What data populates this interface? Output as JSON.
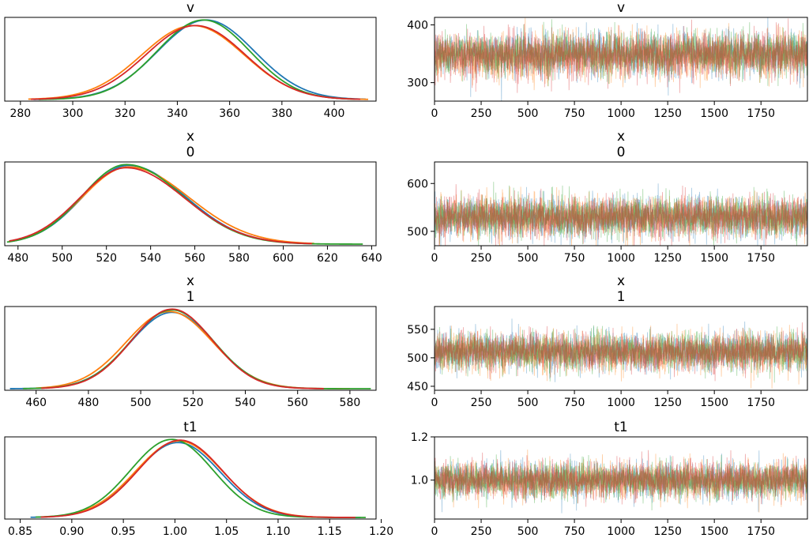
{
  "colors": {
    "chain_1": "#1f77b4",
    "chain_2": "#ff7f0e",
    "chain_3": "#2ca02c",
    "chain_4": "#d62728",
    "trace_blend": "#a0784e"
  },
  "chart_data": [
    {
      "type": "line",
      "kind": "density",
      "title_lines": [
        "v"
      ],
      "xlim": [
        274,
        416
      ],
      "xticks": [
        280,
        300,
        320,
        340,
        360,
        380,
        400
      ],
      "xtick_labels": [
        "280",
        "300",
        "320",
        "340",
        "360",
        "380",
        "400"
      ],
      "yticks": [],
      "series": [
        {
          "mean": 351,
          "sd": 18.5,
          "peak": 1.0,
          "range": [
            285,
            412
          ]
        },
        {
          "mean": 346,
          "sd": 19.5,
          "peak": 0.93,
          "range": [
            283,
            413
          ]
        },
        {
          "mean": 350,
          "sd": 17.8,
          "peak": 1.0,
          "range": [
            287,
            408
          ]
        },
        {
          "mean": 347,
          "sd": 19.0,
          "peak": 0.93,
          "range": [
            284,
            410
          ]
        }
      ]
    },
    {
      "type": "line",
      "kind": "trace",
      "title_lines": [
        "v"
      ],
      "xlim": [
        0,
        1999
      ],
      "ylim": [
        268,
        413
      ],
      "xticks": [
        0,
        250,
        500,
        750,
        1000,
        1250,
        1500,
        1750
      ],
      "xtick_labels": [
        "0",
        "250",
        "500",
        "750",
        "1000",
        "1250",
        "1500",
        "1750"
      ],
      "yticks": [
        300,
        400
      ],
      "ytick_labels": [
        "300",
        "400"
      ],
      "draws": 2000,
      "chains": [
        {
          "mean": 350,
          "sd": 18.5
        },
        {
          "mean": 347,
          "sd": 19.5
        },
        {
          "mean": 350,
          "sd": 17.8
        },
        {
          "mean": 348,
          "sd": 19.0
        }
      ]
    },
    {
      "type": "line",
      "kind": "density",
      "title_lines": [
        "x",
        "0"
      ],
      "xlim": [
        474,
        642
      ],
      "xticks": [
        480,
        500,
        520,
        540,
        560,
        580,
        600,
        620,
        640
      ],
      "xtick_labels": [
        "480",
        "500",
        "520",
        "540",
        "560",
        "580",
        "600",
        "620",
        "640"
      ],
      "yticks": [],
      "series": [
        {
          "mean": 530,
          "sd": 20.5,
          "peak": 0.99,
          "skew": 0.25,
          "range": [
            476,
            612
          ]
        },
        {
          "mean": 530,
          "sd": 21.0,
          "peak": 0.97,
          "skew": 0.3,
          "range": [
            476,
            614
          ]
        },
        {
          "mean": 529,
          "sd": 20.0,
          "peak": 1.0,
          "skew": 0.28,
          "range": [
            475,
            636
          ]
        },
        {
          "mean": 529,
          "sd": 21.0,
          "peak": 0.96,
          "skew": 0.25,
          "range": [
            476,
            613
          ]
        }
      ]
    },
    {
      "type": "line",
      "kind": "trace",
      "title_lines": [
        "x",
        "0"
      ],
      "xlim": [
        0,
        1999
      ],
      "ylim": [
        470,
        645
      ],
      "xticks": [
        0,
        250,
        500,
        750,
        1000,
        1250,
        1500,
        1750
      ],
      "xtick_labels": [
        "0",
        "250",
        "500",
        "750",
        "1000",
        "1250",
        "1500",
        "1750"
      ],
      "yticks": [
        500,
        600
      ],
      "ytick_labels": [
        "500",
        "600"
      ],
      "draws": 2000,
      "chains": [
        {
          "mean": 531,
          "sd": 20.5
        },
        {
          "mean": 531,
          "sd": 21.0
        },
        {
          "mean": 530,
          "sd": 20.0
        },
        {
          "mean": 530,
          "sd": 21.0
        }
      ]
    },
    {
      "type": "line",
      "kind": "density",
      "title_lines": [
        "x",
        "1"
      ],
      "xlim": [
        448,
        590
      ],
      "xticks": [
        460,
        480,
        500,
        520,
        540,
        560,
        580
      ],
      "xtick_labels": [
        "460",
        "480",
        "500",
        "520",
        "540",
        "560",
        "580"
      ],
      "yticks": [],
      "series": [
        {
          "mean": 512,
          "sd": 16.0,
          "peak": 0.96,
          "range": [
            450,
            570
          ]
        },
        {
          "mean": 511,
          "sd": 16.5,
          "peak": 0.97,
          "range": [
            460,
            580
          ]
        },
        {
          "mean": 512,
          "sd": 15.8,
          "peak": 0.99,
          "range": [
            455,
            588
          ]
        },
        {
          "mean": 512,
          "sd": 15.5,
          "peak": 1.0,
          "range": [
            462,
            570
          ]
        }
      ]
    },
    {
      "type": "line",
      "kind": "trace",
      "title_lines": [
        "x",
        "1"
      ],
      "xlim": [
        0,
        1999
      ],
      "ylim": [
        443,
        590
      ],
      "xticks": [
        0,
        250,
        500,
        750,
        1000,
        1250,
        1500,
        1750
      ],
      "xtick_labels": [
        "0",
        "250",
        "500",
        "750",
        "1000",
        "1250",
        "1500",
        "1750"
      ],
      "yticks": [
        450,
        500,
        550
      ],
      "ytick_labels": [
        "450",
        "500",
        "550"
      ],
      "draws": 2000,
      "chains": [
        {
          "mean": 511,
          "sd": 16.0
        },
        {
          "mean": 510,
          "sd": 16.5
        },
        {
          "mean": 511,
          "sd": 15.8
        },
        {
          "mean": 511,
          "sd": 15.5
        }
      ]
    },
    {
      "type": "line",
      "kind": "density",
      "title_lines": [
        "t1"
      ],
      "xlim": [
        0.835,
        1.195
      ],
      "xticks": [
        0.85,
        0.9,
        0.95,
        1.0,
        1.05,
        1.1,
        1.15,
        1.2
      ],
      "xtick_labels": [
        "0.85",
        "0.90",
        "0.95",
        "1.00",
        "1.05",
        "1.10",
        "1.15",
        "1.20"
      ],
      "yticks": [],
      "series": [
        {
          "mean": 1.003,
          "sd": 0.041,
          "peak": 0.96,
          "range": [
            0.86,
            1.18
          ]
        },
        {
          "mean": 1.004,
          "sd": 0.042,
          "peak": 0.98,
          "range": [
            0.87,
            1.17
          ]
        },
        {
          "mean": 0.997,
          "sd": 0.04,
          "peak": 1.0,
          "range": [
            0.865,
            1.185
          ]
        },
        {
          "mean": 1.005,
          "sd": 0.041,
          "peak": 0.99,
          "range": [
            0.87,
            1.175
          ]
        }
      ]
    },
    {
      "type": "line",
      "kind": "trace",
      "title_lines": [
        "t1"
      ],
      "xlim": [
        0,
        1999
      ],
      "ylim": [
        0.82,
        1.2
      ],
      "xticks": [
        0,
        250,
        500,
        750,
        1000,
        1250,
        1500,
        1750
      ],
      "xtick_labels": [
        "0",
        "250",
        "500",
        "750",
        "1000",
        "1250",
        "1500",
        "1750"
      ],
      "yticks": [
        1.0,
        1.2
      ],
      "ytick_labels": [
        "1.0",
        "1.2"
      ],
      "draws": 2000,
      "chains": [
        {
          "mean": 1.0,
          "sd": 0.041
        },
        {
          "mean": 1.0,
          "sd": 0.042
        },
        {
          "mean": 0.998,
          "sd": 0.04
        },
        {
          "mean": 1.002,
          "sd": 0.041
        }
      ]
    }
  ]
}
